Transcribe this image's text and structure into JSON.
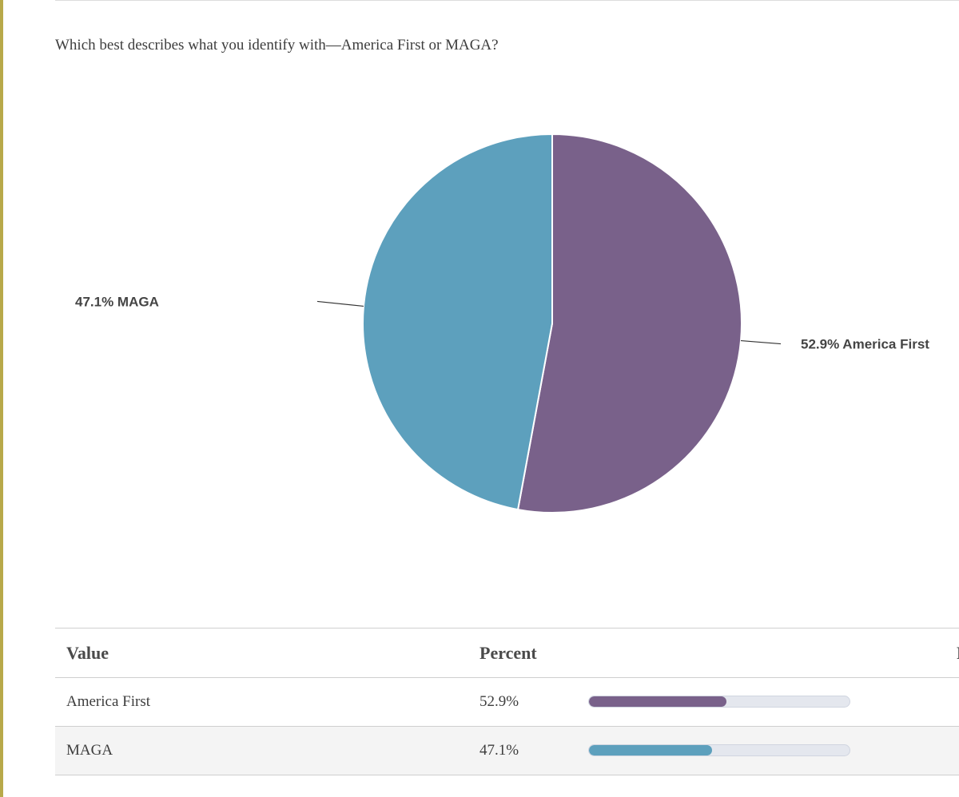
{
  "question": "Which best describes what you identify with—America First or MAGA?",
  "chart_data": {
    "type": "pie",
    "title": "Which best describes what you identify with—America First or MAGA?",
    "slices": [
      {
        "label": "America First",
        "value": 52.9,
        "display": "52.9% America First",
        "color": "#79618a"
      },
      {
        "label": "MAGA",
        "value": 47.1,
        "display": "47.1% MAGA",
        "color": "#5da0bd"
      }
    ]
  },
  "table": {
    "headers": {
      "value": "Value",
      "percent": "Percent",
      "extra": "R"
    },
    "rows": [
      {
        "value": "America First",
        "percent": "52.9%",
        "bar_fraction": 0.529,
        "color": "#79618a"
      },
      {
        "value": "MAGA",
        "percent": "47.1%",
        "bar_fraction": 0.471,
        "color": "#5da0bd"
      }
    ]
  }
}
